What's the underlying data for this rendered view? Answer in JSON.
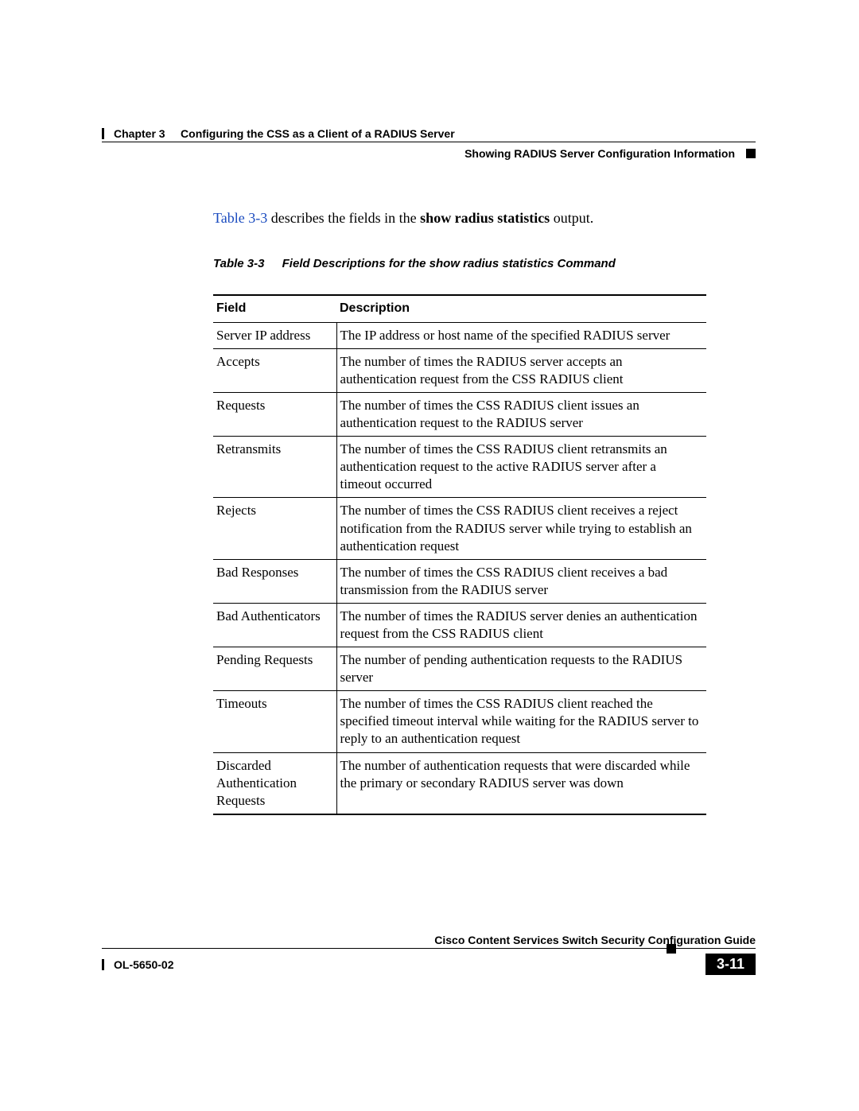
{
  "header": {
    "chapter_label": "Chapter 3",
    "chapter_title": "Configuring the CSS as a Client of a RADIUS Server",
    "section_title": "Showing RADIUS Server Configuration Information"
  },
  "intro": {
    "link_text": "Table 3-3",
    "rest_a": " describes the fields in the ",
    "bold": "show radius statistics",
    "rest_b": " output."
  },
  "caption": {
    "num": "Table 3-3",
    "text": "Field Descriptions for the show radius statistics Command"
  },
  "table": {
    "col1": "Field",
    "col2": "Description",
    "rows": [
      {
        "f": "Server IP address",
        "d": "The IP address or host name of the specified RADIUS server"
      },
      {
        "f": "Accepts",
        "d": "The number of times the RADIUS server accepts an authentication request from the CSS RADIUS client"
      },
      {
        "f": "Requests",
        "d": "The number of times the CSS RADIUS client issues an authentication request to the RADIUS server"
      },
      {
        "f": "Retransmits",
        "d": "The number of times the CSS RADIUS client retransmits an authentication request to the active RADIUS server after a timeout occurred"
      },
      {
        "f": "Rejects",
        "d": "The number of times the CSS RADIUS client receives a reject notification from the RADIUS server while trying to establish an authentication request"
      },
      {
        "f": "Bad Responses",
        "d": "The number of times the CSS RADIUS client receives a bad transmission from the RADIUS server"
      },
      {
        "f": "Bad Authenticators",
        "d": "The number of times the RADIUS server denies an authentication request from the CSS RADIUS client"
      },
      {
        "f": "Pending Requests",
        "d": "The number of pending authentication requests to the RADIUS server"
      },
      {
        "f": "Timeouts",
        "d": "The number of times the CSS RADIUS client reached the specified timeout interval while waiting for the RADIUS server to reply to an authentication request"
      },
      {
        "f": "Discarded Authentication Requests",
        "d": "The number of authentication requests that were discarded while the primary or secondary RADIUS server was down"
      }
    ]
  },
  "footer": {
    "guide": "Cisco Content Services Switch Security Configuration Guide",
    "doc": "OL-5650-02",
    "page": "3-11"
  }
}
